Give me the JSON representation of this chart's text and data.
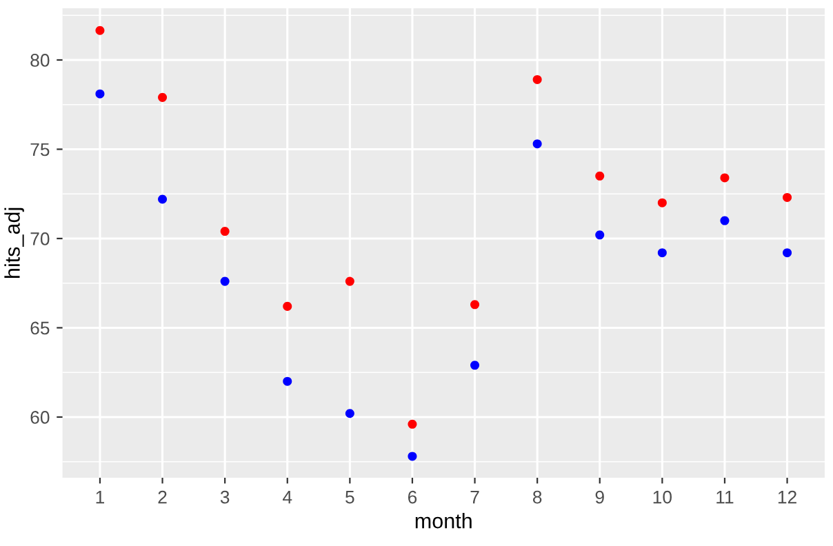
{
  "chart_data": {
    "type": "scatter",
    "xlabel": "month",
    "ylabel": "hits_adj",
    "x": [
      1,
      2,
      3,
      4,
      5,
      6,
      7,
      8,
      9,
      10,
      11,
      12
    ],
    "series": [
      {
        "color": "#ff0000",
        "values": [
          81.65,
          77.9,
          70.4,
          66.2,
          67.6,
          59.6,
          66.3,
          78.9,
          73.5,
          72.0,
          73.4,
          72.3
        ]
      },
      {
        "color": "#0000ff",
        "values": [
          78.1,
          72.2,
          67.6,
          62.0,
          60.2,
          57.8,
          62.9,
          75.3,
          70.2,
          69.2,
          71.0,
          69.2
        ]
      }
    ],
    "xlim": [
      0.4,
      12.6
    ],
    "ylim": [
      56.6,
      82.9
    ],
    "xticks": [
      1,
      2,
      3,
      4,
      5,
      6,
      7,
      8,
      9,
      10,
      11,
      12
    ],
    "yticks": [
      60,
      65,
      70,
      75,
      80
    ],
    "grid": true,
    "marker": "circle"
  }
}
